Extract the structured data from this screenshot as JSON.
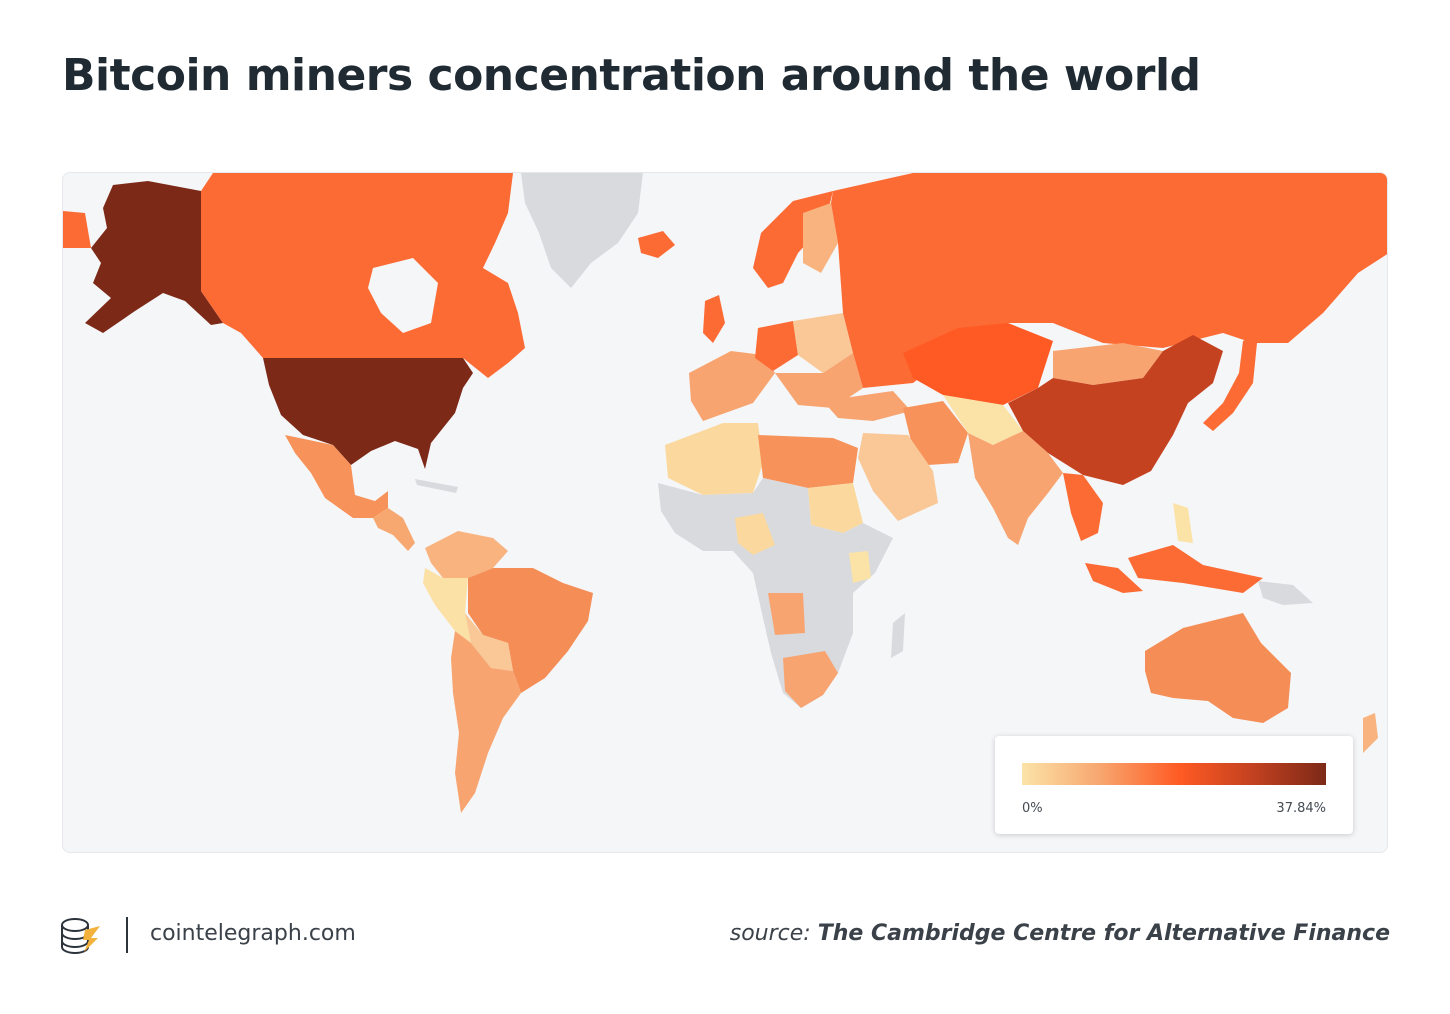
{
  "title": "Bitcoin miners concentration around the world",
  "legend": {
    "min_label": "0%",
    "max_label": "37.84%",
    "gradient_colors": [
      "#fbe3a8",
      "#f7a870",
      "#ff5a23",
      "#c54220",
      "#7d2918"
    ]
  },
  "colors": {
    "background": "#f5f6f8",
    "no_data": "#d9dadd",
    "title": "#1f2a33",
    "logo_accent": "#f2b23b"
  },
  "footer": {
    "logo_icon": "cointelegraph-coin-stack-icon",
    "site": "cointelegraph.com",
    "source_prefix": "source:",
    "source_name": "The Cambridge Centre for Alternative Finance"
  }
}
